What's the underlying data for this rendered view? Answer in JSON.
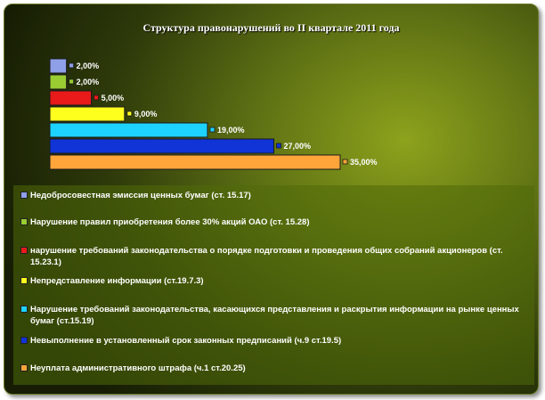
{
  "chart_data": {
    "type": "bar",
    "orientation": "horizontal",
    "title": "Структура правонарушений во II квартале 2011 года",
    "categories": [
      "Недобросовестная эмиссия ценных бумаг (ст. 15.17)",
      "Нарушение правил приобретения более 30% акций ОАО (ст. 15.28)",
      "нарушение требований законодательства о порядке подготовки и проведения общих собраний акционеров (ст. 15.23.1)",
      "Непредставление информации (ст.19.7.3)",
      "Нарушение требований законодательства, касающихся представления и раскрытия  информации на рынке ценных бумаг (ст.15.19)",
      "Невыполнение в установленный срок законных предписаний (ч.9 ст.19.5)",
      "Неуплата административного штрафа (ч.1 ст.20.25)"
    ],
    "values": [
      2,
      2,
      5,
      9,
      19,
      27,
      35
    ],
    "value_labels": [
      "2,00%",
      "2,00%",
      "5,00%",
      "9,00%",
      "19,00%",
      "27,00%",
      "35,00%"
    ],
    "colors": [
      "#8f9fe8",
      "#9acd32",
      "#e81a1a",
      "#ffff1e",
      "#1ed2ff",
      "#1034d6",
      "#ffa53a"
    ],
    "xlim": [
      0,
      35
    ],
    "grid": false,
    "legend_position": "bottom"
  }
}
